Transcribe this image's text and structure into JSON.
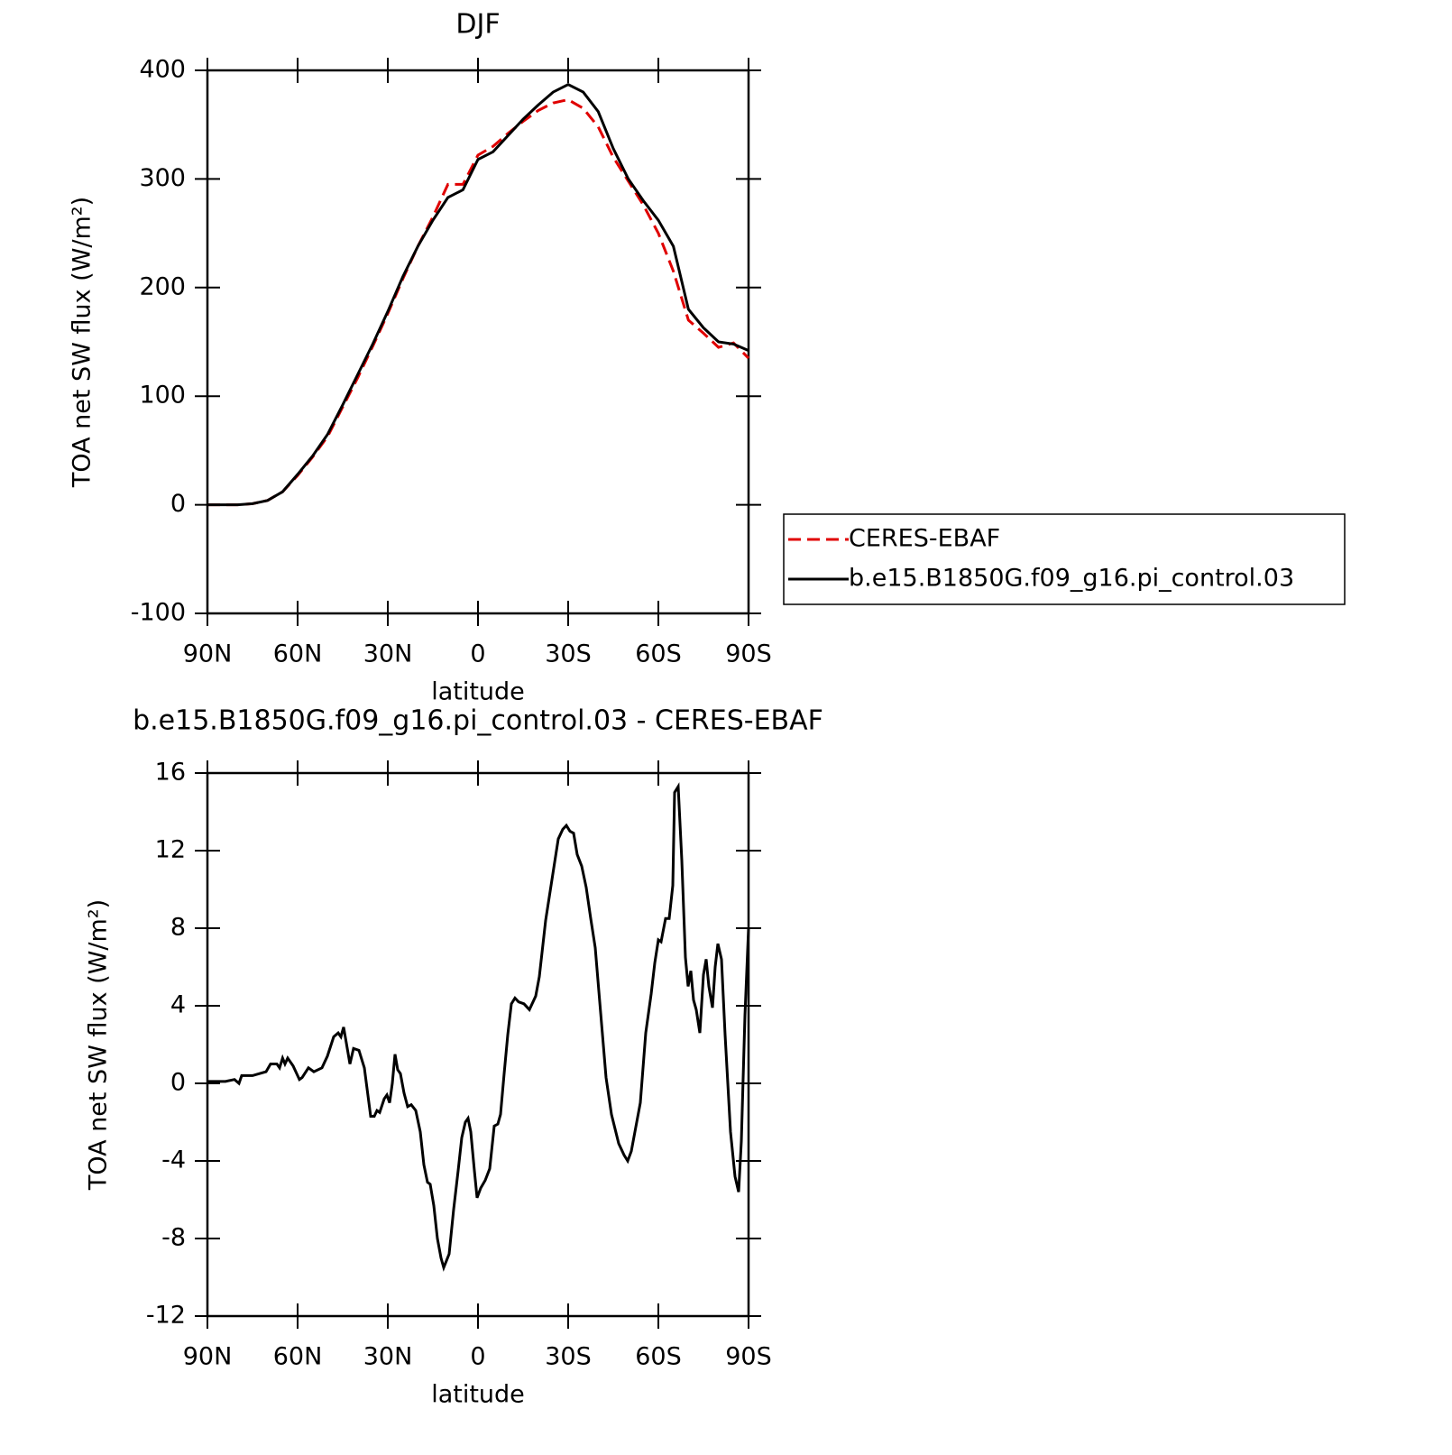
{
  "chart_data": [
    {
      "type": "line",
      "title": "DJF",
      "xlabel": "latitude",
      "ylabel": "TOA net SW flux (W/m²)",
      "x": [
        90,
        85,
        80,
        75,
        70,
        65,
        60,
        55,
        50,
        45,
        40,
        35,
        30,
        25,
        20,
        15,
        10,
        5,
        0,
        -5,
        -10,
        -15,
        -20,
        -25,
        -30,
        -35,
        -40,
        -45,
        -50,
        -55,
        -60,
        -65,
        -70,
        -75,
        -80,
        -85,
        -90
      ],
      "series": [
        {
          "name": "CERES-EBAF",
          "color": "#e00000",
          "style": "dashed",
          "values": [
            0,
            0,
            0,
            1,
            4,
            12,
            27,
            44,
            63,
            90,
            117,
            146,
            176,
            208,
            238,
            265,
            295,
            295,
            322,
            330,
            342,
            353,
            363,
            370,
            373,
            365,
            348,
            320,
            298,
            276,
            250,
            215,
            170,
            158,
            145,
            149,
            135
          ]
        },
        {
          "name": "b.e15.B1850G.f09_g16.pi_control.03",
          "color": "#000000",
          "style": "solid",
          "values": [
            0,
            0,
            0,
            1,
            4,
            12,
            28,
            45,
            65,
            92,
            120,
            148,
            178,
            210,
            238,
            262,
            283,
            290,
            318,
            325,
            340,
            355,
            368,
            380,
            387,
            380,
            362,
            328,
            300,
            280,
            262,
            238,
            180,
            163,
            150,
            148,
            142
          ]
        }
      ],
      "xlim": [
        90,
        -90
      ],
      "xticks": [
        {
          "value": 90,
          "label": "90N"
        },
        {
          "value": 60,
          "label": "60N"
        },
        {
          "value": 30,
          "label": "30N"
        },
        0,
        {
          "value": -30,
          "label": "30S"
        },
        {
          "value": -60,
          "label": "60S"
        },
        {
          "value": -90,
          "label": "90S"
        }
      ],
      "ylim": [
        -100,
        400
      ],
      "yticks": [
        -100,
        0,
        100,
        200,
        300,
        400
      ],
      "legend": "right"
    },
    {
      "type": "line",
      "title": "b.e15.B1850G.f09_g16.pi_control.03 - CERES-EBAF",
      "xlabel": "latitude",
      "ylabel": "TOA net SW flux (W/m²)",
      "x": [
        90,
        84,
        81,
        79.5,
        78.6,
        75,
        70.5,
        69,
        66.9,
        66,
        65,
        64.2,
        63.3,
        61.5,
        59.4,
        58.5,
        56.4,
        54.6,
        51.9,
        50.1,
        48,
        46.5,
        45.6,
        44.7,
        42.6,
        41.4,
        39.6,
        37.8,
        35.7,
        34.5,
        33.6,
        32.7,
        31.2,
        30.3,
        29.4,
        28.5,
        27.6,
        26.7,
        25.8,
        24.6,
        23.4,
        22.2,
        20.7,
        19.2,
        18,
        16.8,
        15.9,
        14.7,
        13.5,
        12.3,
        11.4,
        9.6,
        8.1,
        6.6,
        5.4,
        4.2,
        3.3,
        2.4,
        1.2,
        0.3,
        -0.9,
        -2.4,
        -3.9,
        -5.4,
        -6.6,
        -7.5,
        -8.7,
        -9.9,
        -11.1,
        -12.3,
        -13.5,
        -15.3,
        -17.1,
        -19.2,
        -20.4,
        -22.5,
        -24.6,
        -26.7,
        -28.2,
        -29.4,
        -30.6,
        -31.8,
        -33,
        -34.5,
        -36,
        -37.5,
        -39,
        -40.5,
        -42.6,
        -44.4,
        -46.8,
        -48.6,
        -49.8,
        -51,
        -52.8,
        -54,
        -55.8,
        -57.6,
        -58.8,
        -60,
        -60.9,
        -62.4,
        -63.6,
        -64.8,
        -65.4,
        -66.6,
        -67.8,
        -69,
        -69.9,
        -70.8,
        -71.7,
        -72.6,
        -73.8,
        -75,
        -75.9,
        -76.8,
        -78,
        -78.9,
        -79.8,
        -81,
        -82.2,
        -84,
        -85.5,
        -86.7,
        -87.6,
        -88.8,
        -90
      ],
      "series": [
        {
          "color": "#000000",
          "style": "solid",
          "values": [
            0.1,
            0.1,
            0.2,
            0,
            0.4,
            0.4,
            0.6,
            1.0,
            1.0,
            0.8,
            1.3,
            1.0,
            1.3,
            0.9,
            0.2,
            0.3,
            0.8,
            0.6,
            0.8,
            1.4,
            2.4,
            2.6,
            2.4,
            2.9,
            1.0,
            1.8,
            1.7,
            0.8,
            -1.7,
            -1.7,
            -1.4,
            -1.5,
            -0.8,
            -0.6,
            -1.0,
            0,
            1.5,
            0.7,
            0.5,
            -0.5,
            -1.2,
            -1.1,
            -1.4,
            -2.5,
            -4.2,
            -5.1,
            -5.2,
            -6.3,
            -8.0,
            -9.0,
            -9.5,
            -8.8,
            -6.5,
            -4.5,
            -2.8,
            -2.0,
            -1.8,
            -2.5,
            -4.5,
            -5.9,
            -5.4,
            -5.0,
            -4.4,
            -2.2,
            -2.1,
            -1.6,
            0.5,
            2.5,
            4.1,
            4.4,
            4.2,
            4.1,
            3.8,
            4.5,
            5.5,
            8.4,
            10.5,
            12.6,
            13.1,
            13.3,
            13.0,
            12.9,
            11.8,
            11.2,
            10.1,
            8.5,
            7.0,
            4.2,
            0.3,
            -1.6,
            -3.1,
            -3.7,
            -4.0,
            -3.5,
            -2.0,
            -1.0,
            2.6,
            4.6,
            6.2,
            7.4,
            7.3,
            8.5,
            8.5,
            10.2,
            15.0,
            15.3,
            11.5,
            6.5,
            5.0,
            5.8,
            4.3,
            3.8,
            2.6,
            5.6,
            6.4,
            5.0,
            3.9,
            6.0,
            7.2,
            6.4,
            2.5,
            -2.5,
            -4.8,
            -5.6,
            -3.0,
            3.5,
            8.0
          ]
        }
      ],
      "xlim": [
        90,
        -90
      ],
      "xticks": [
        {
          "value": 90,
          "label": "90N"
        },
        {
          "value": 60,
          "label": "60N"
        },
        {
          "value": 30,
          "label": "30N"
        },
        0,
        {
          "value": -30,
          "label": "30S"
        },
        {
          "value": -60,
          "label": "60S"
        },
        {
          "value": -90,
          "label": "90S"
        }
      ],
      "ylim": [
        -12,
        16
      ],
      "yticks": [
        -12,
        -8,
        -4,
        0,
        4,
        8,
        12,
        16
      ]
    }
  ]
}
